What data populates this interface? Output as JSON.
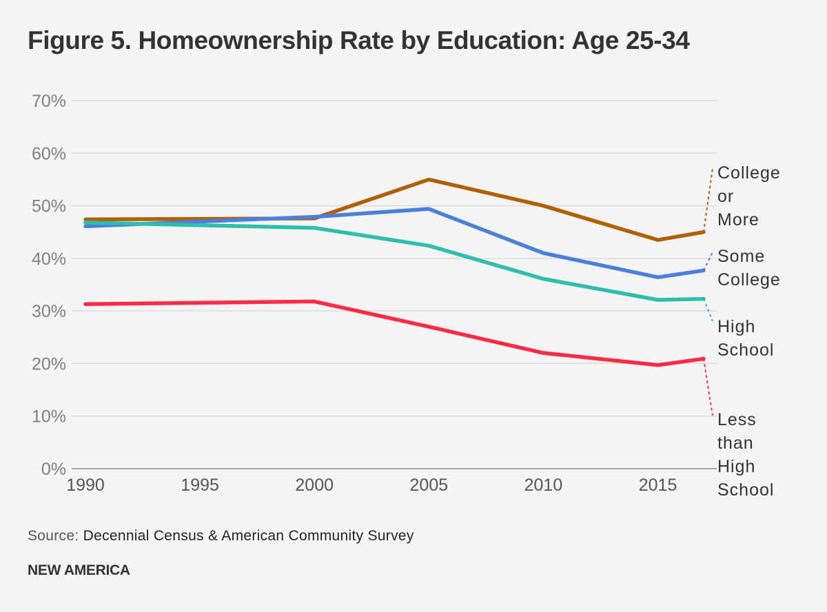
{
  "chart_data": {
    "type": "line",
    "title": "Figure 5. Homeownership Rate by Education: Age 25-34",
    "xlabel": "",
    "ylabel": "",
    "x": [
      1990,
      2000,
      2005,
      2010,
      2015,
      2017
    ],
    "x_ticks": [
      "1990",
      "1995",
      "2000",
      "2005",
      "2010",
      "2015"
    ],
    "x_tick_values": [
      1990,
      1995,
      2000,
      2005,
      2010,
      2015
    ],
    "xlim": [
      1990,
      2017
    ],
    "y_ticks": [
      "0%",
      "10%",
      "20%",
      "30%",
      "40%",
      "50%",
      "60%",
      "70%"
    ],
    "y_tick_values": [
      0,
      10,
      20,
      30,
      40,
      50,
      60,
      70
    ],
    "ylim": [
      0,
      70
    ],
    "grid": true,
    "legend": "right (direct labels at line ends)",
    "series": [
      {
        "name": "College or More",
        "label_lines": [
          "College",
          "or",
          "More"
        ],
        "color": "#b06000",
        "values": [
          47.4,
          47.6,
          55.0,
          50.0,
          43.5,
          45.0
        ]
      },
      {
        "name": "Some College",
        "label_lines": [
          "Some",
          "College"
        ],
        "color": "#4a7fdb",
        "values": [
          46.1,
          47.9,
          49.4,
          41.0,
          36.4,
          37.7
        ]
      },
      {
        "name": "High School",
        "label_lines": [
          "High",
          "School"
        ],
        "color": "#2fbdae",
        "values": [
          46.8,
          45.8,
          42.4,
          36.1,
          32.1,
          32.3
        ]
      },
      {
        "name": "Less than High School",
        "label_lines": [
          "Less",
          "than",
          "High",
          "School"
        ],
        "color": "#ff2a45",
        "values": [
          31.3,
          31.8,
          27.0,
          22.0,
          19.7,
          20.9
        ]
      }
    ]
  },
  "footer": {
    "source_prefix": "Source:",
    "source_text": " Decennial Census & American Community Survey",
    "brand": "NEW AMERICA"
  }
}
